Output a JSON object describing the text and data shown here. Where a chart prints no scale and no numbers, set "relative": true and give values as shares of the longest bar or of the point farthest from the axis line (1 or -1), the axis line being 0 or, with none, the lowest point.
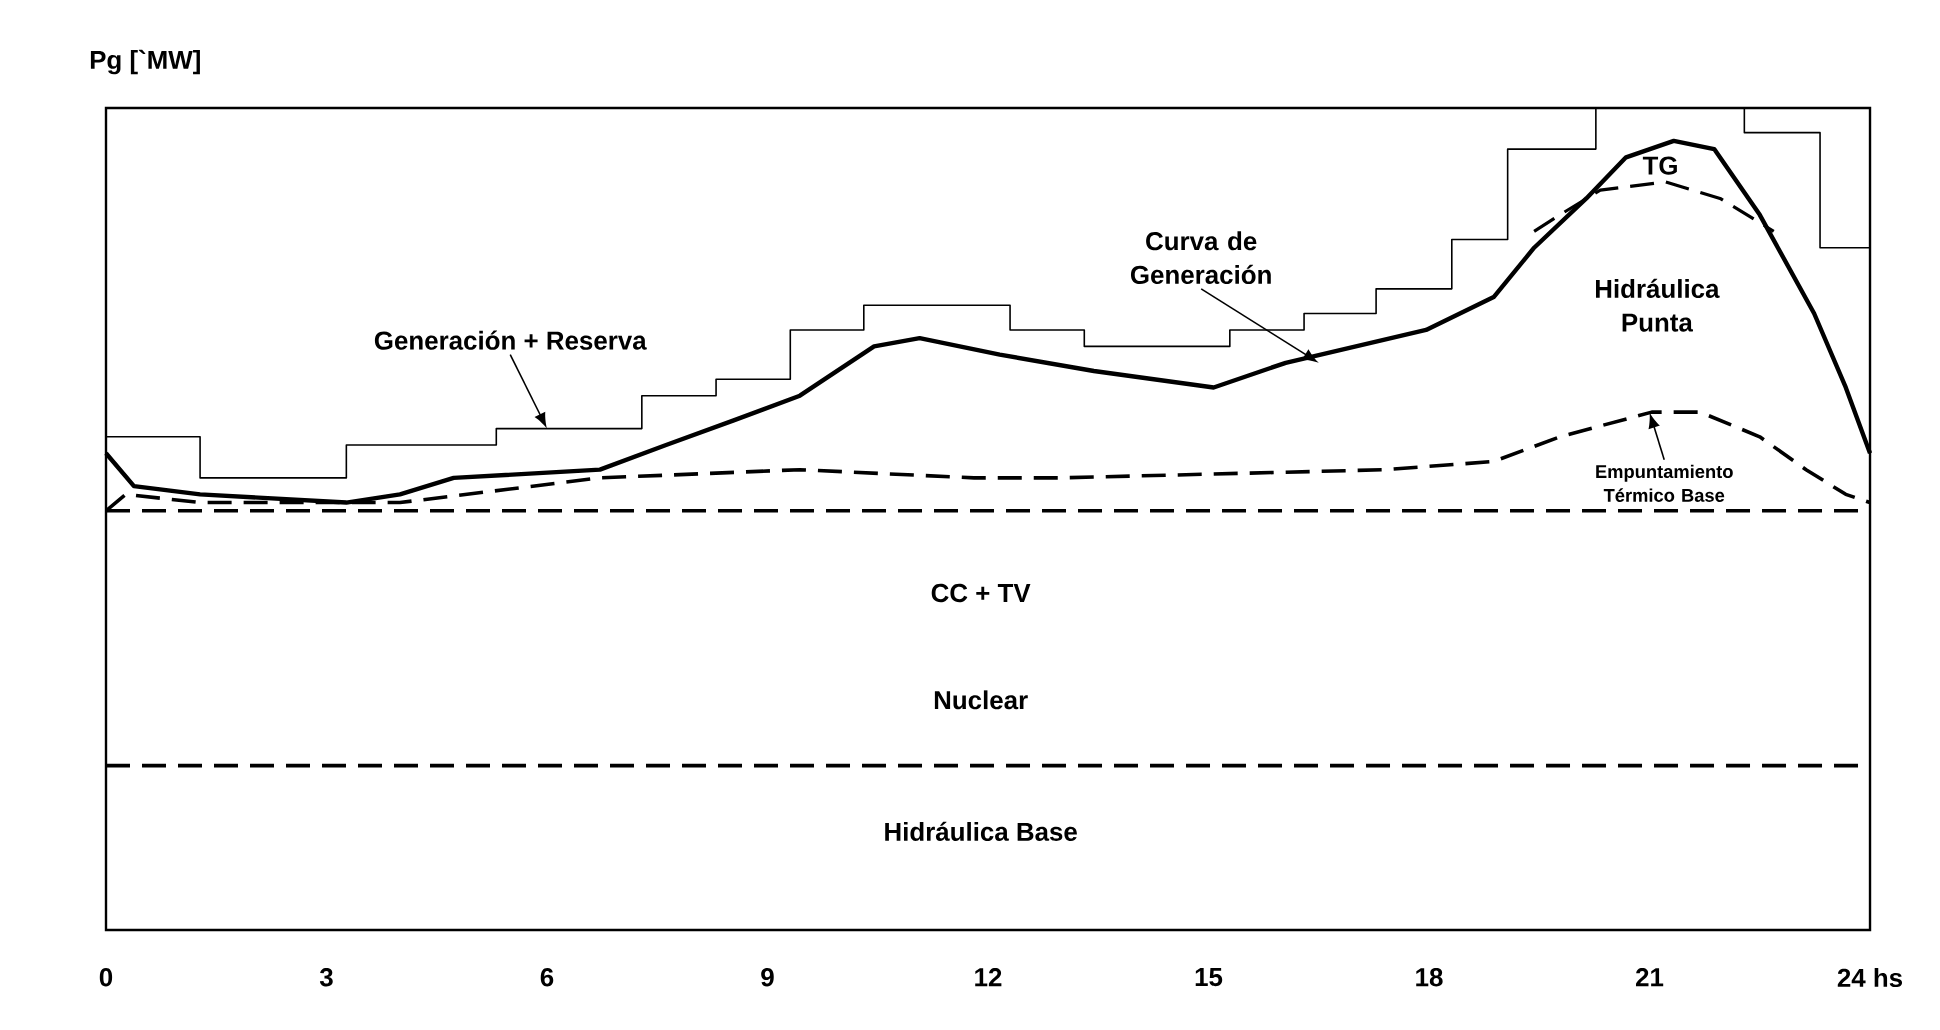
{
  "chart_data": {
    "type": "line",
    "relative": true,
    "ylabel": "Pg [`MW]",
    "xlim": [
      0,
      24
    ],
    "xticks": [
      0,
      3,
      6,
      9,
      12,
      15,
      18,
      21,
      {
        "value": 24,
        "label": "24 hs"
      }
    ],
    "series": [
      {
        "color": "#000000",
        "line_style": "solid",
        "x": [
          0,
          0.38,
          1.28,
          3.27,
          4.0,
          4.73,
          6.72,
          7.62,
          8.54,
          9.44,
          10.45,
          11.07,
          12.16,
          13.44,
          15.07,
          16.05,
          17.96,
          18.88,
          19.43,
          20.14,
          20.68,
          21.33,
          21.88,
          22.5,
          23.24,
          23.67,
          24
        ],
        "values": [
          0.58,
          0.54,
          0.53,
          0.52,
          0.53,
          0.55,
          0.56,
          0.59,
          0.62,
          0.65,
          0.71,
          0.72,
          0.7,
          0.68,
          0.66,
          0.69,
          0.73,
          0.77,
          0.83,
          0.89,
          0.94,
          0.96,
          0.95,
          0.87,
          0.75,
          0.66,
          0.58
        ]
      },
      {
        "color": "#000000",
        "line_style": "dashed",
        "x": [
          0,
          0.27,
          1.28,
          4.0,
          6.72,
          9.44,
          11.81,
          12.98,
          17.41,
          18.88,
          19.78,
          21.03,
          21.69,
          22.5,
          23.13,
          23.67,
          24
        ],
        "values": [
          0.51,
          0.53,
          0.52,
          0.52,
          0.55,
          0.56,
          0.55,
          0.55,
          0.56,
          0.57,
          0.6,
          0.63,
          0.63,
          0.6,
          0.56,
          0.53,
          0.52
        ]
      },
      {
        "color": "#000000",
        "line_style": "dashed",
        "x": [
          0,
          24
        ],
        "values": [
          0.51,
          0.51
        ]
      },
      {
        "color": "#000000",
        "line_style": "dashed",
        "x": [
          0,
          24
        ],
        "values": [
          0.2,
          0.2
        ]
      },
      {
        "color": "#000000",
        "line_style": "dashed",
        "x": [
          19.43,
          19.78,
          20.33,
          21.22,
          21.96,
          22.69
        ],
        "values": [
          0.85,
          0.87,
          0.9,
          0.91,
          0.89,
          0.85
        ]
      },
      {
        "type": "step",
        "color": "#000000",
        "line_style": "solid",
        "x": [
          0,
          1.28,
          3.27,
          5.31,
          7.29,
          8.3,
          9.31,
          10.31,
          12.3,
          13.31,
          15.29,
          16.3,
          17.28,
          18.31,
          19.07,
          20.27,
          22.29,
          23.32,
          24
        ],
        "values": [
          0.6,
          0.55,
          0.59,
          0.61,
          0.65,
          0.67,
          0.73,
          0.76,
          0.73,
          0.71,
          0.73,
          0.75,
          0.78,
          0.84,
          0.95,
          1.0,
          0.97,
          0.83,
          0.83
        ]
      }
    ],
    "annotations": [
      {
        "text": "Generación + Reserva",
        "x": 6,
        "y": 0.61
      },
      {
        "text": "Curva de Generación",
        "x": 16.5,
        "y": 0.69
      },
      "TG",
      "Hidráulica Punta",
      {
        "text": "Empuntamiento Térmico Base",
        "x": 21,
        "y": 0.63
      },
      "CC + TV",
      "Nuclear",
      "Hidráulica Base"
    ]
  }
}
